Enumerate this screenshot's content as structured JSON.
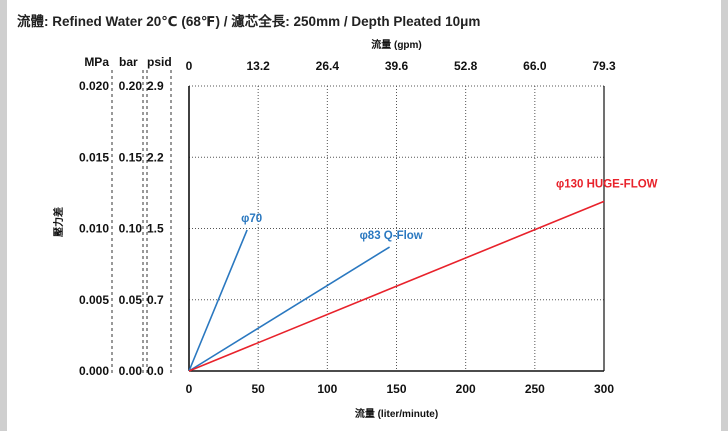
{
  "title": "流體: Refined Water 20℃ (68℉) / 濾芯全長: 250mm / Depth Pleated 10μm",
  "colors": {
    "mpa": "#111111",
    "bar": "#e0702a",
    "psid": "#2aa6d6",
    "phi70": "#2a78c0",
    "phi83": "#2a78c0",
    "phi130": "#e8222b",
    "grid": "#555555",
    "frame": "#cfcfcf"
  },
  "chart_data": {
    "type": "line",
    "xlabel": "流量 (liter/minute)",
    "x2label": "流量 (gpm)",
    "ylabel": "壓力差",
    "xlim": [
      0,
      300
    ],
    "ylim": [
      0,
      0.02
    ],
    "x_ticks": [
      0,
      50,
      100,
      150,
      200,
      250,
      300
    ],
    "x2_ticks": [
      "0",
      "13.2",
      "26.4",
      "39.6",
      "52.8",
      "66.0",
      "79.3"
    ],
    "y_axes": [
      {
        "unit": "MPa",
        "ticks": [
          "0.000",
          "0.005",
          "0.010",
          "0.015",
          "0.020"
        ]
      },
      {
        "unit": "bar",
        "ticks": [
          "0.00",
          "0.05",
          "0.10",
          "0.15",
          "0.20"
        ]
      },
      {
        "unit": "psid",
        "ticks": [
          "0.0",
          "0.7",
          "1.5",
          "2.2",
          "2.9"
        ]
      }
    ],
    "y_tick_values": [
      0,
      0.005,
      0.01,
      0.015,
      0.02
    ],
    "grid": true,
    "series": [
      {
        "name": "φ70",
        "x": [
          0,
          42
        ],
        "y": [
          0,
          0.0099
        ]
      },
      {
        "name": "φ83 Q-Flow",
        "x": [
          0,
          145
        ],
        "y": [
          0,
          0.0087
        ]
      },
      {
        "name": "φ130 HUGE-FLOW",
        "x": [
          0,
          300
        ],
        "y": [
          0,
          0.0119
        ]
      }
    ]
  }
}
